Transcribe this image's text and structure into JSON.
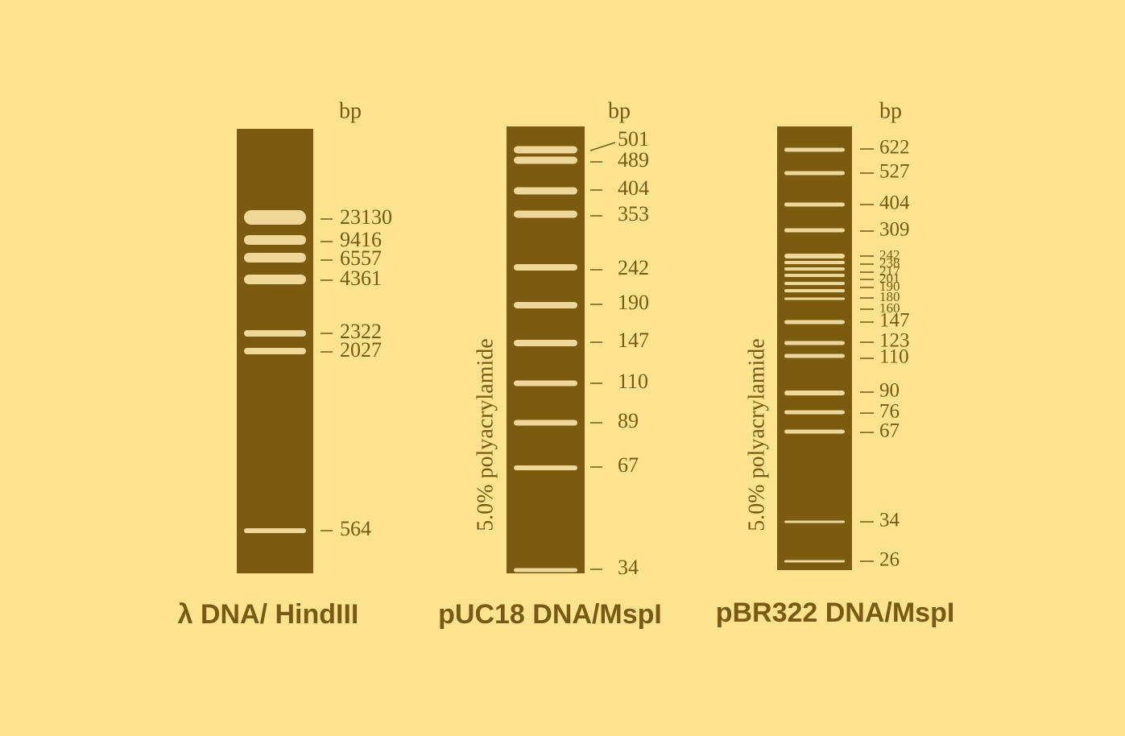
{
  "gels": [
    {
      "unit": "bp",
      "title": "λ DNA/ HindIII",
      "bands": [
        23130,
        9416,
        6557,
        4361,
        2322,
        2027,
        564
      ]
    },
    {
      "unit": "bp",
      "title": "pUC18 DNA/MspI",
      "gel_note": "5.0% polyacrylamide",
      "bands": [
        501,
        489,
        404,
        353,
        242,
        190,
        147,
        110,
        89,
        67,
        34
      ]
    },
    {
      "unit": "bp",
      "title": "pBR322 DNA/MspI",
      "gel_note": "5.0% polyacrylamide",
      "bands": [
        622,
        527,
        404,
        309,
        242,
        238,
        217,
        201,
        190,
        180,
        160,
        147,
        123,
        110,
        90,
        76,
        67,
        34,
        26
      ]
    }
  ]
}
